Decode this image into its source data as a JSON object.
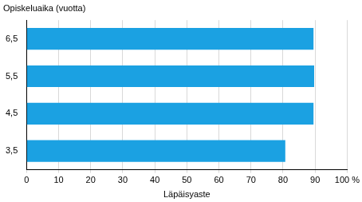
{
  "chart_data": {
    "type": "bar",
    "orientation": "horizontal",
    "y_label": "Opiskeluaika (vuotta)",
    "x_label": "Läpäisyaste",
    "categories": [
      "6,5",
      "5,5",
      "4,5",
      "3,5"
    ],
    "values": [
      89.5,
      89.7,
      89.5,
      80.7
    ],
    "color": "#1ba1e2",
    "xlim": [
      0,
      100
    ],
    "xticks": [
      0,
      10,
      20,
      30,
      40,
      50,
      60,
      70,
      80,
      90,
      {
        "value": 100,
        "label": "100 %"
      }
    ],
    "grid": true
  }
}
